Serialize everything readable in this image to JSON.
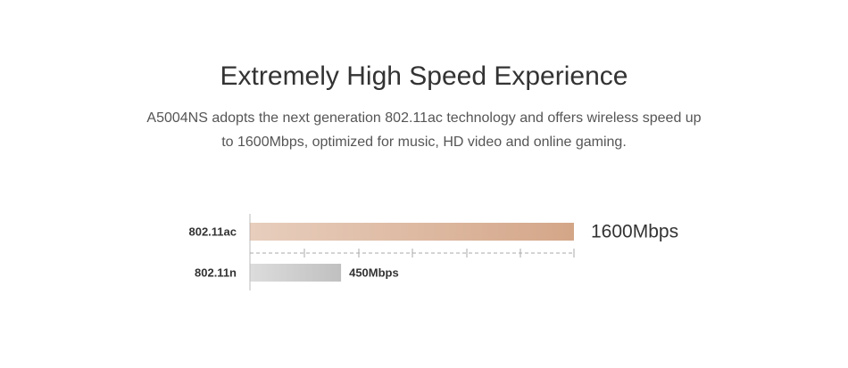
{
  "chart_data": {
    "type": "bar",
    "orientation": "horizontal",
    "title": "Extremely High Speed Experience",
    "subtitle_lines": [
      "A5004NS adopts the next generation 802.11ac technology and offers wireless speed up",
      "to 1600Mbps, optimized for music, HD video and online gaming."
    ],
    "categories": [
      "802.11ac",
      "802.11n"
    ],
    "values": [
      1600,
      450
    ],
    "value_labels": [
      "1600Mbps",
      "450Mbps"
    ],
    "colors": [
      "#d4a688",
      "#c0c0c0"
    ],
    "xlim": [
      0,
      1600
    ]
  }
}
